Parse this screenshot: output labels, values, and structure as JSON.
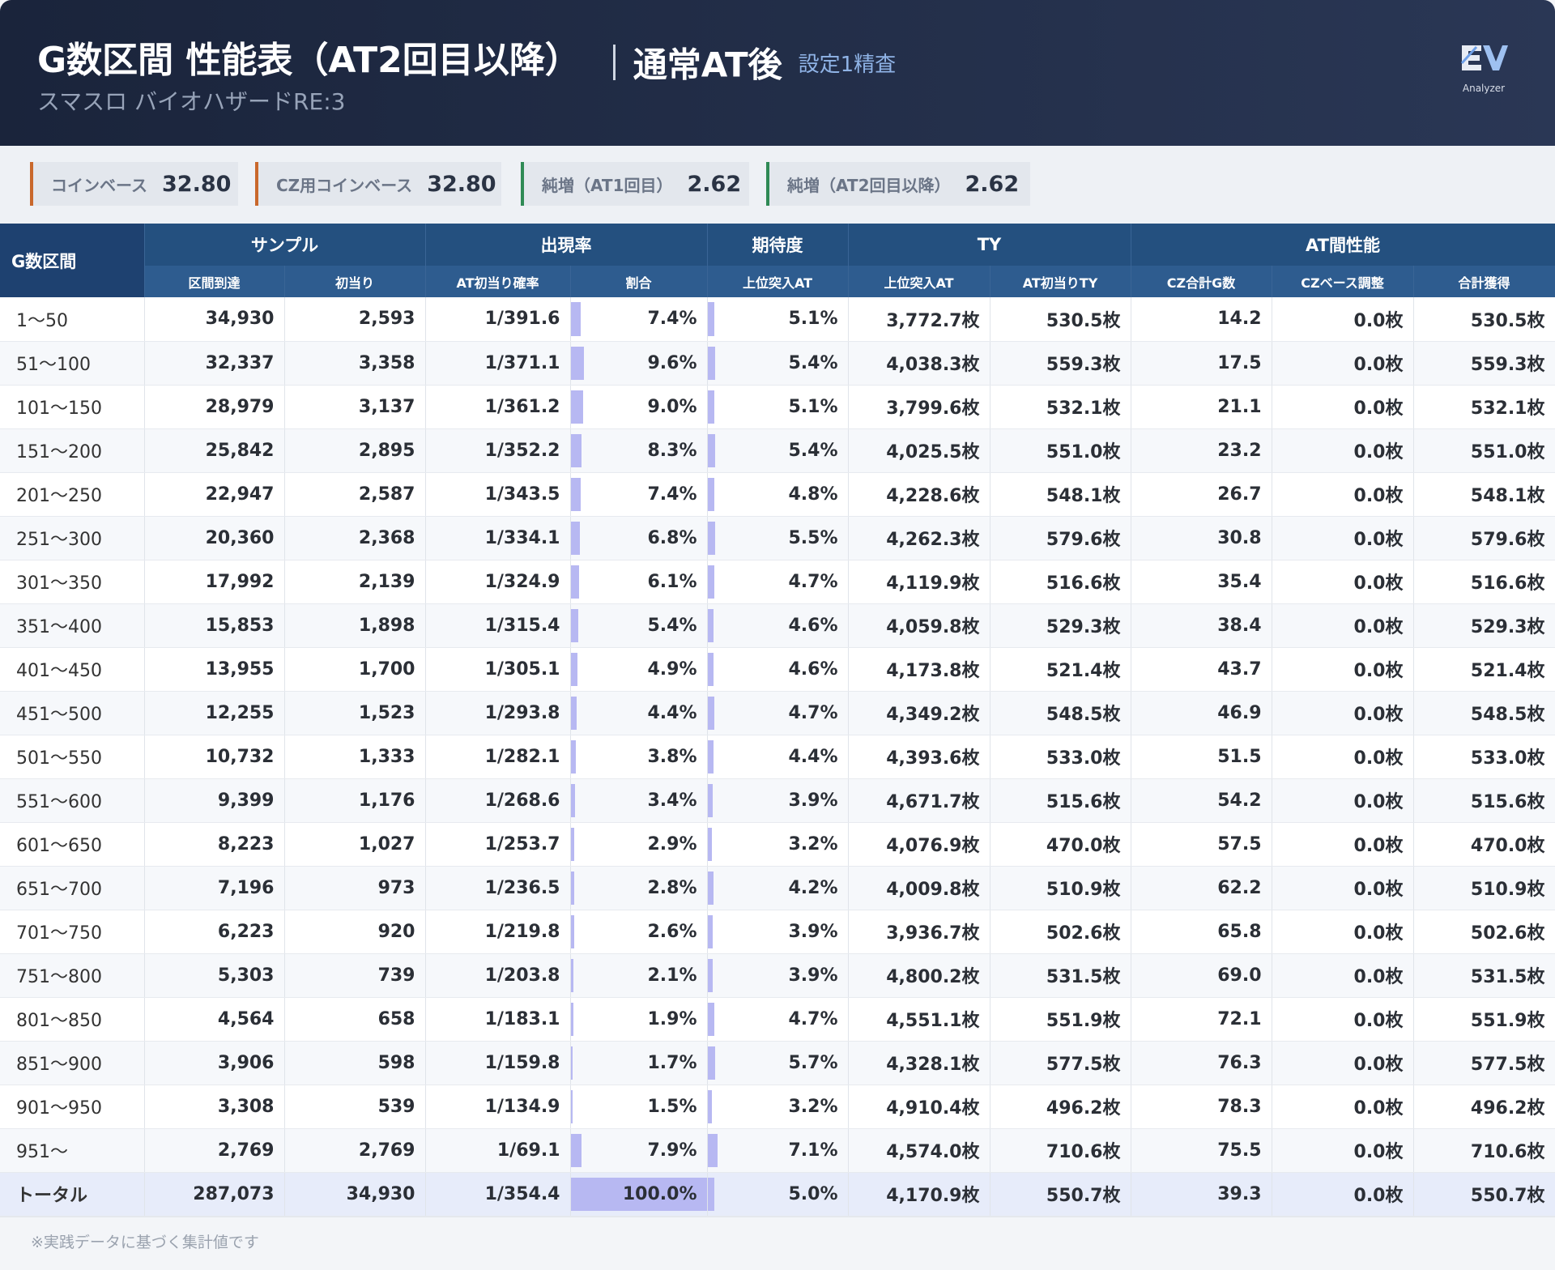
{
  "header": {
    "title": "G数区間 性能表（AT2回目以降）",
    "mode": "通常AT後",
    "setting": "設定1精査",
    "machine": "スマスロ バイオハザードRE:3",
    "logo": "Analyzer"
  },
  "stats": [
    {
      "label": "コインベース",
      "value": "32.80"
    },
    {
      "label": "CZ用コインベース",
      "value": "32.80"
    },
    {
      "label": "純増（AT1回目）",
      "value": "2.62"
    },
    {
      "label": "純増（AT2回目以降）",
      "value": "2.62"
    }
  ],
  "table": {
    "corner": "G数区間",
    "groups": [
      "サンプル",
      "出現率",
      "期待度",
      "TY",
      "AT間性能"
    ],
    "columns": [
      "区間到達",
      "初当り",
      "AT初当り確率",
      "割合",
      "上位突入AT",
      "上位突入AT",
      "AT初当りTY",
      "CZ合計G数",
      "CZベース調整",
      "合計獲得"
    ],
    "rows": [
      [
        "1～50",
        "34,930",
        "2,593",
        "1/391.6",
        "7.4%",
        "5.1%",
        "3,772.7枚",
        "530.5枚",
        "14.2",
        "0.0枚",
        "530.5枚"
      ],
      [
        "51～100",
        "32,337",
        "3,358",
        "1/371.1",
        "9.6%",
        "5.4%",
        "4,038.3枚",
        "559.3枚",
        "17.5",
        "0.0枚",
        "559.3枚"
      ],
      [
        "101～150",
        "28,979",
        "3,137",
        "1/361.2",
        "9.0%",
        "5.1%",
        "3,799.6枚",
        "532.1枚",
        "21.1",
        "0.0枚",
        "532.1枚"
      ],
      [
        "151～200",
        "25,842",
        "2,895",
        "1/352.2",
        "8.3%",
        "5.4%",
        "4,025.5枚",
        "551.0枚",
        "23.2",
        "0.0枚",
        "551.0枚"
      ],
      [
        "201～250",
        "22,947",
        "2,587",
        "1/343.5",
        "7.4%",
        "4.8%",
        "4,228.6枚",
        "548.1枚",
        "26.7",
        "0.0枚",
        "548.1枚"
      ],
      [
        "251～300",
        "20,360",
        "2,368",
        "1/334.1",
        "6.8%",
        "5.5%",
        "4,262.3枚",
        "579.6枚",
        "30.8",
        "0.0枚",
        "579.6枚"
      ],
      [
        "301～350",
        "17,992",
        "2,139",
        "1/324.9",
        "6.1%",
        "4.7%",
        "4,119.9枚",
        "516.6枚",
        "35.4",
        "0.0枚",
        "516.6枚"
      ],
      [
        "351～400",
        "15,853",
        "1,898",
        "1/315.4",
        "5.4%",
        "4.6%",
        "4,059.8枚",
        "529.3枚",
        "38.4",
        "0.0枚",
        "529.3枚"
      ],
      [
        "401～450",
        "13,955",
        "1,700",
        "1/305.1",
        "4.9%",
        "4.6%",
        "4,173.8枚",
        "521.4枚",
        "43.7",
        "0.0枚",
        "521.4枚"
      ],
      [
        "451～500",
        "12,255",
        "1,523",
        "1/293.8",
        "4.4%",
        "4.7%",
        "4,349.2枚",
        "548.5枚",
        "46.9",
        "0.0枚",
        "548.5枚"
      ],
      [
        "501～550",
        "10,732",
        "1,333",
        "1/282.1",
        "3.8%",
        "4.4%",
        "4,393.6枚",
        "533.0枚",
        "51.5",
        "0.0枚",
        "533.0枚"
      ],
      [
        "551～600",
        "9,399",
        "1,176",
        "1/268.6",
        "3.4%",
        "3.9%",
        "4,671.7枚",
        "515.6枚",
        "54.2",
        "0.0枚",
        "515.6枚"
      ],
      [
        "601～650",
        "8,223",
        "1,027",
        "1/253.7",
        "2.9%",
        "3.2%",
        "4,076.9枚",
        "470.0枚",
        "57.5",
        "0.0枚",
        "470.0枚"
      ],
      [
        "651～700",
        "7,196",
        "973",
        "1/236.5",
        "2.8%",
        "4.2%",
        "4,009.8枚",
        "510.9枚",
        "62.2",
        "0.0枚",
        "510.9枚"
      ],
      [
        "701～750",
        "6,223",
        "920",
        "1/219.8",
        "2.6%",
        "3.9%",
        "3,936.7枚",
        "502.6枚",
        "65.8",
        "0.0枚",
        "502.6枚"
      ],
      [
        "751～800",
        "5,303",
        "739",
        "1/203.8",
        "2.1%",
        "3.9%",
        "4,800.2枚",
        "531.5枚",
        "69.0",
        "0.0枚",
        "531.5枚"
      ],
      [
        "801～850",
        "4,564",
        "658",
        "1/183.1",
        "1.9%",
        "4.7%",
        "4,551.1枚",
        "551.9枚",
        "72.1",
        "0.0枚",
        "551.9枚"
      ],
      [
        "851～900",
        "3,906",
        "598",
        "1/159.8",
        "1.7%",
        "5.7%",
        "4,328.1枚",
        "577.5枚",
        "76.3",
        "0.0枚",
        "577.5枚"
      ],
      [
        "901～950",
        "3,308",
        "539",
        "1/134.9",
        "1.5%",
        "3.2%",
        "4,910.4枚",
        "496.2枚",
        "78.3",
        "0.0枚",
        "496.2枚"
      ],
      [
        "951～",
        "2,769",
        "2,769",
        "1/69.1",
        "7.9%",
        "7.1%",
        "4,574.0枚",
        "710.6枚",
        "75.5",
        "0.0枚",
        "710.6枚"
      ]
    ],
    "total": [
      "トータル",
      "287,073",
      "34,930",
      "1/354.4",
      "100.0%",
      "5.0%",
      "4,170.9枚",
      "550.7枚",
      "39.3",
      "0.0枚",
      "550.7枚"
    ]
  },
  "footer": "※実践データに基づく集計値です"
}
